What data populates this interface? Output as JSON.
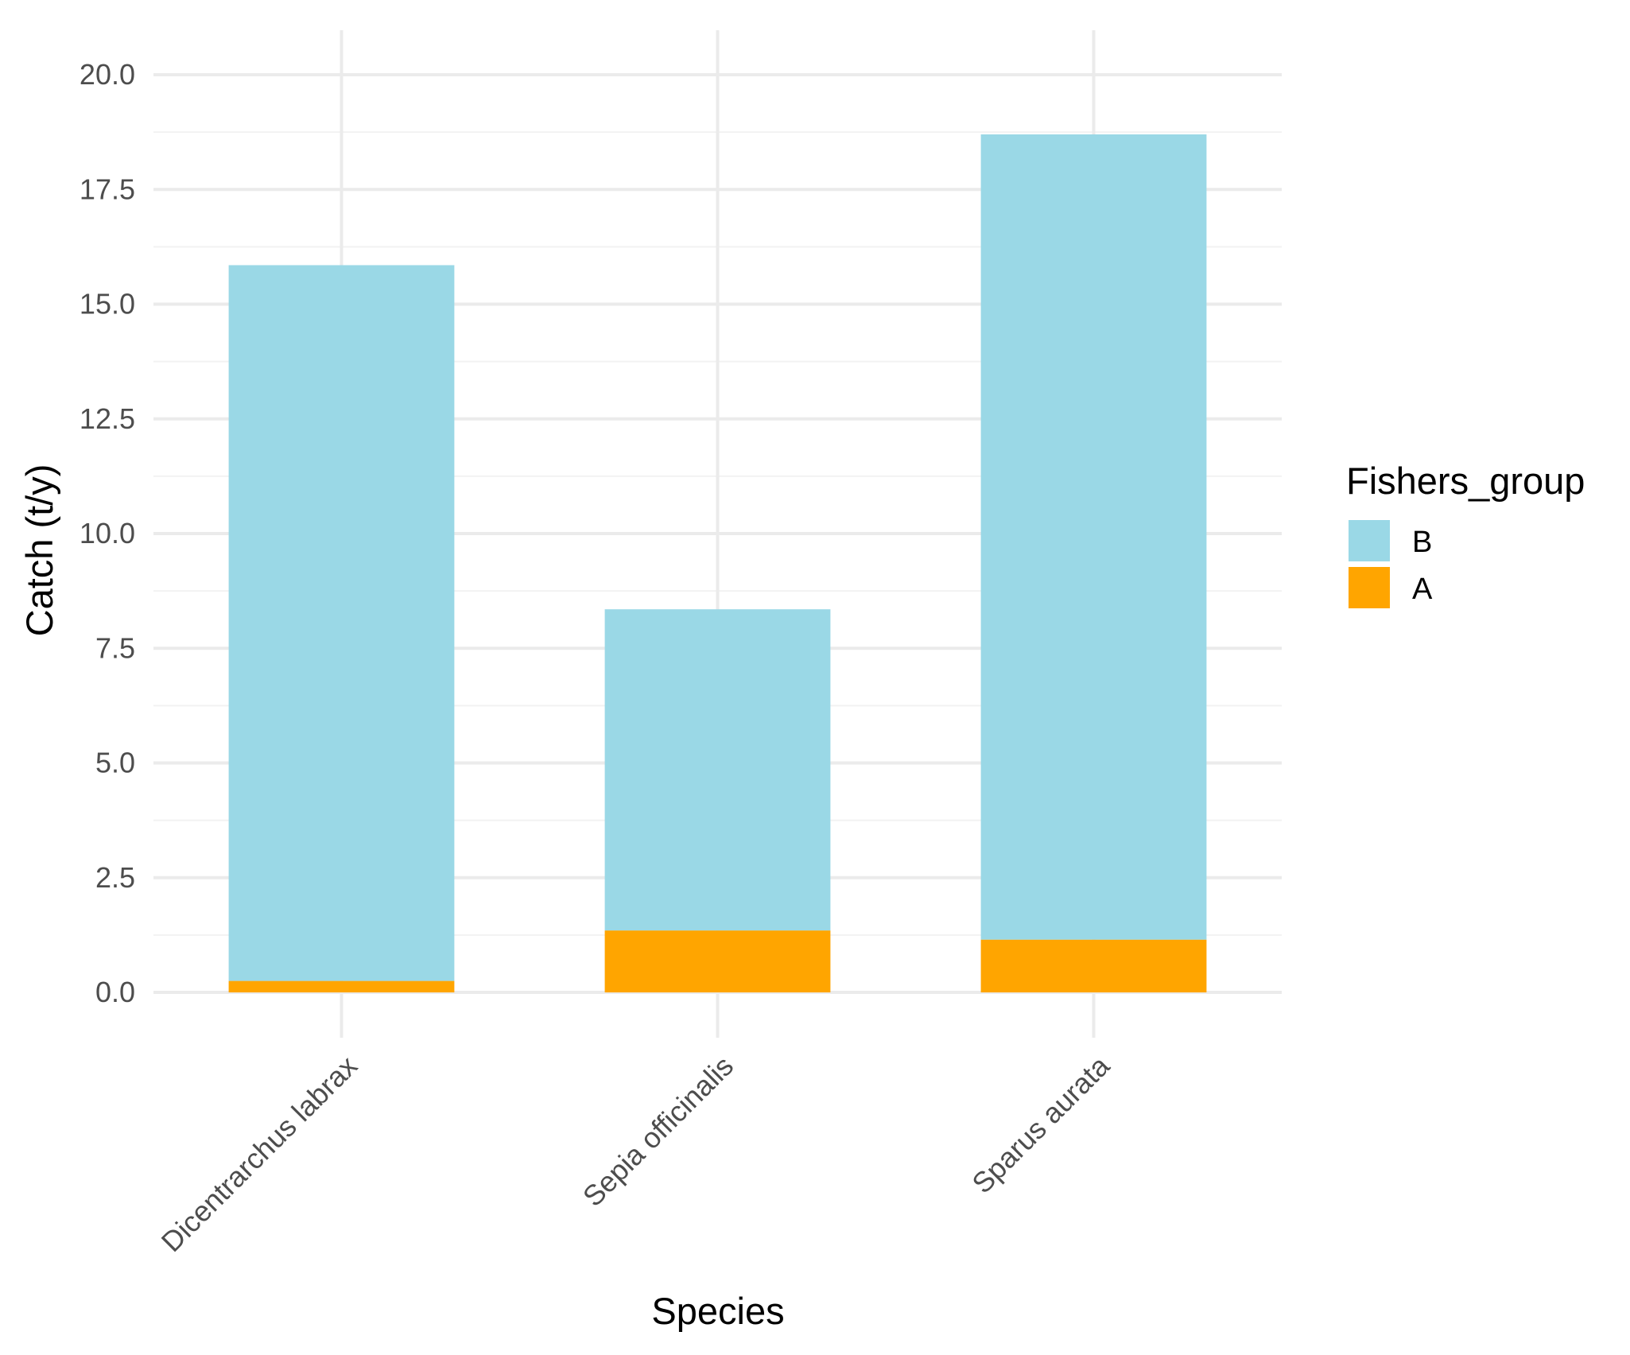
{
  "chart_data": {
    "type": "bar",
    "stacked": true,
    "title": "",
    "xlabel": "Species",
    "ylabel": "Catch (t/y)",
    "ylim": [
      -1.9,
      21
    ],
    "y_ticks": [
      {
        "value": 0.0,
        "label": "0.0"
      },
      {
        "value": 2.5,
        "label": "2.5"
      },
      {
        "value": 5.0,
        "label": "5.0"
      },
      {
        "value": 7.5,
        "label": "7.5"
      },
      {
        "value": 10.0,
        "label": "10.0"
      },
      {
        "value": 12.5,
        "label": "12.5"
      },
      {
        "value": 15.0,
        "label": "15.0"
      },
      {
        "value": 17.5,
        "label": "17.5"
      },
      {
        "value": 20.0,
        "label": "20.0"
      }
    ],
    "categories": [
      "Dicentrarchus labrax",
      "Sepia officinalis",
      "Sparus aurata"
    ],
    "series": [
      {
        "name": "A",
        "color": "#FFA500",
        "values": [
          0.25,
          1.35,
          1.15
        ]
      },
      {
        "name": "B",
        "color": "#9AD8E6",
        "values": [
          15.6,
          7.0,
          17.55
        ]
      }
    ],
    "legend": {
      "title": "Fishers_group",
      "order": [
        "B",
        "A"
      ],
      "position": "right"
    },
    "grid": true
  }
}
